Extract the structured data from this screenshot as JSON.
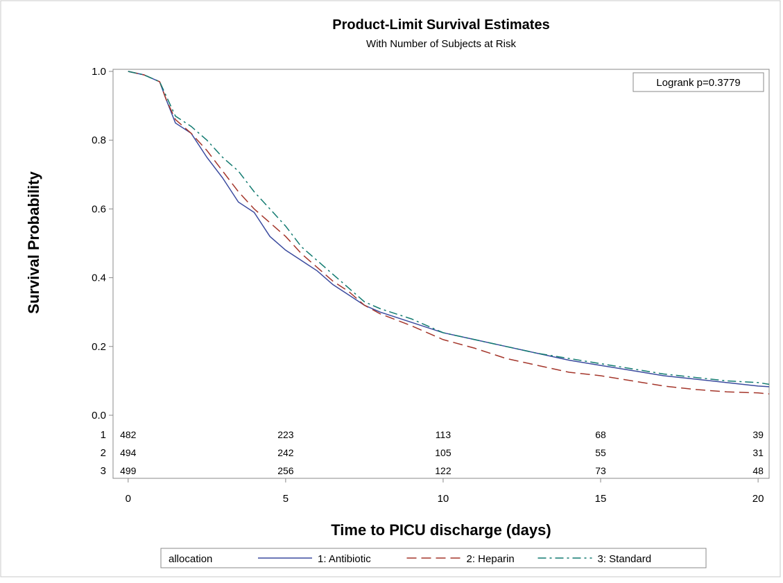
{
  "chart_data": {
    "type": "line",
    "title": "Product-Limit Survival Estimates",
    "subtitle": "With Number of Subjects at Risk",
    "x_label": "Time to PICU discharge (days)",
    "y_label": "Survival Probability",
    "annotation": "Logrank p=0.3779",
    "legend_title": "allocation",
    "legend": "bottom",
    "xlim": [
      -0.48,
      20.35
    ],
    "xticks": [
      0,
      5,
      10,
      15,
      20
    ],
    "ylim": [
      0,
      1
    ],
    "yticks": [
      {
        "value": 0,
        "label": "0.0"
      },
      0.2,
      0.4,
      0.6,
      0.8,
      {
        "value": 1,
        "label": "1.0"
      }
    ],
    "x": [
      0,
      0.5,
      1,
      1.2,
      1.5,
      2,
      2.5,
      3,
      3.5,
      4,
      4.5,
      5,
      5.5,
      6,
      6.5,
      7,
      7.5,
      8,
      9,
      10,
      11,
      12,
      13,
      14,
      15,
      16,
      17,
      18,
      19,
      20,
      20.35
    ],
    "series": [
      {
        "name": "1: Antibiotic",
        "color": "#3a4a9e",
        "line_style": "solid",
        "values": [
          1,
          0.99,
          0.97,
          0.92,
          0.85,
          0.82,
          0.75,
          0.69,
          0.62,
          0.59,
          0.52,
          0.48,
          0.45,
          0.42,
          0.38,
          0.35,
          0.32,
          0.3,
          0.27,
          0.24,
          0.22,
          0.2,
          0.18,
          0.16,
          0.145,
          0.13,
          0.115,
          0.105,
          0.095,
          0.085,
          0.083
        ]
      },
      {
        "name": "2: Heparin",
        "color": "#a4352a",
        "line_style": "dashed",
        "values": [
          1,
          0.99,
          0.97,
          0.92,
          0.86,
          0.82,
          0.77,
          0.71,
          0.65,
          0.6,
          0.56,
          0.52,
          0.47,
          0.43,
          0.39,
          0.36,
          0.32,
          0.295,
          0.26,
          0.22,
          0.195,
          0.165,
          0.145,
          0.125,
          0.115,
          0.1,
          0.085,
          0.075,
          0.068,
          0.065,
          0.062
        ]
      },
      {
        "name": "3: Standard",
        "color": "#117a70",
        "line_style": "dashdot",
        "values": [
          1,
          0.99,
          0.97,
          0.93,
          0.87,
          0.84,
          0.8,
          0.75,
          0.71,
          0.65,
          0.6,
          0.55,
          0.49,
          0.45,
          0.41,
          0.37,
          0.33,
          0.31,
          0.28,
          0.24,
          0.22,
          0.2,
          0.18,
          0.165,
          0.15,
          0.135,
          0.12,
          0.11,
          0.1,
          0.095,
          0.09
        ]
      }
    ],
    "at_risk": {
      "groups": [
        "1",
        "2",
        "3"
      ],
      "x": [
        0,
        5,
        10,
        15,
        20
      ],
      "rows": [
        [
          482,
          223,
          113,
          68,
          39
        ],
        [
          494,
          242,
          105,
          55,
          31
        ],
        [
          499,
          256,
          122,
          73,
          48
        ]
      ]
    }
  }
}
